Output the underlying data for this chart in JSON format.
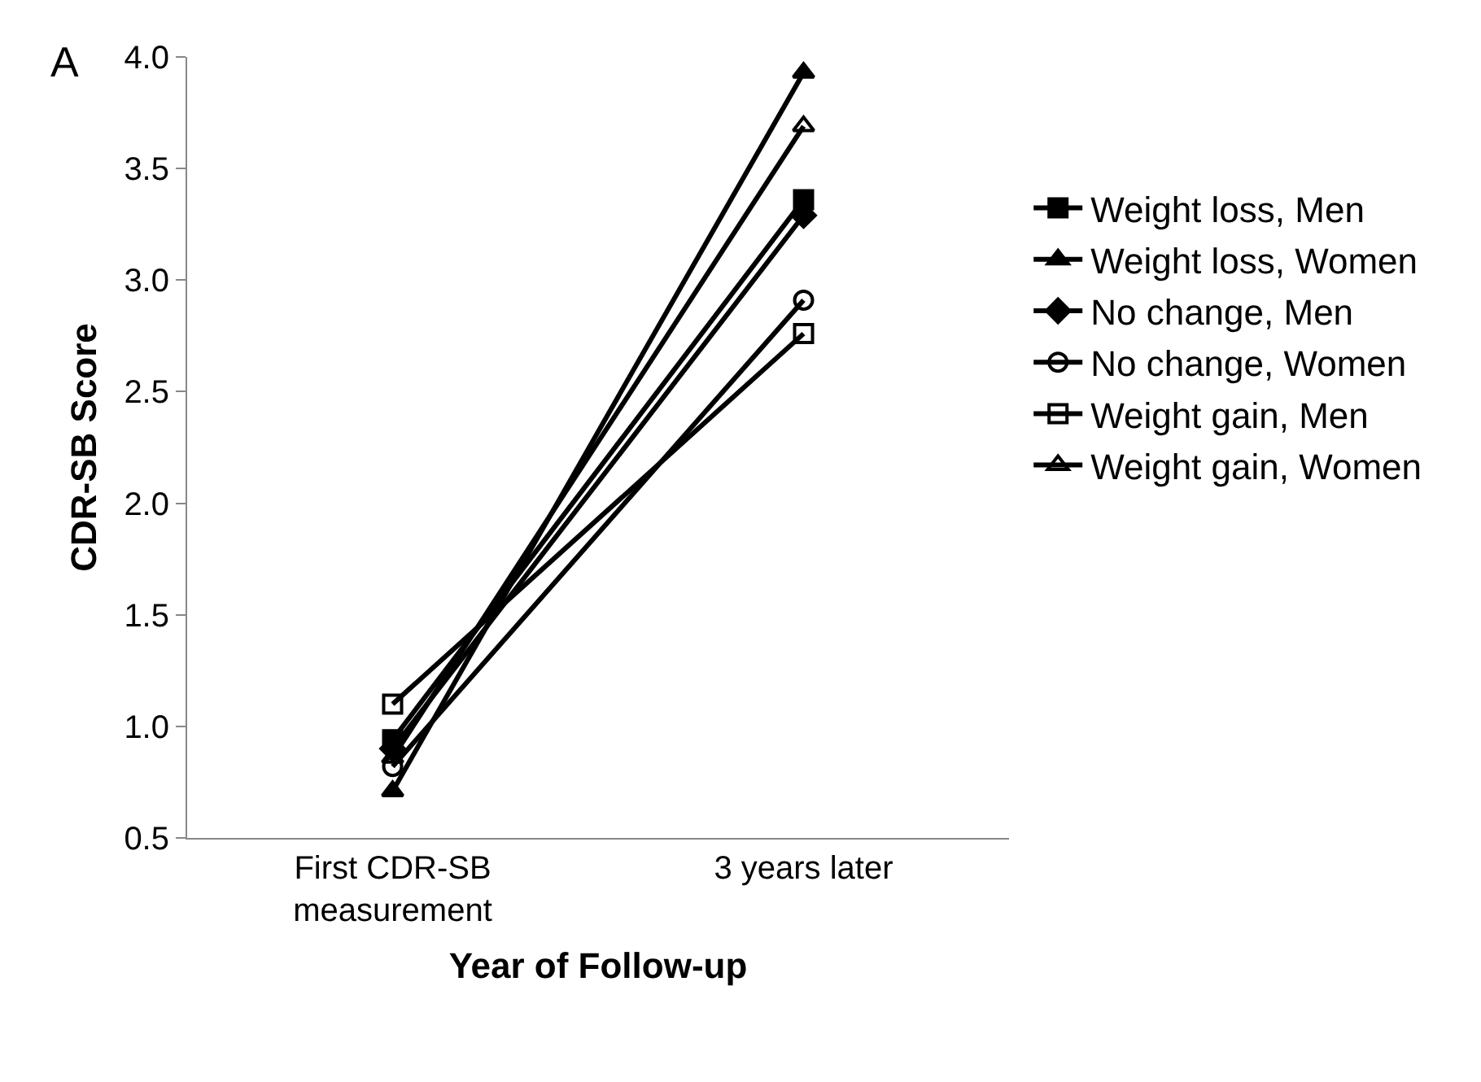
{
  "chart_data": {
    "type": "line",
    "xlabel": "Year of Follow-up",
    "ylabel": "CDR-SB Score",
    "annotations": [
      "A"
    ],
    "categories": [
      "First CDR-SB measurement",
      "3 years later"
    ],
    "ylim": [
      0.5,
      4.0
    ],
    "yticks": [
      {
        "value": 0.5,
        "label": "0.5"
      },
      {
        "value": 1,
        "label": "1.0"
      },
      {
        "value": 1.5,
        "label": "1.5"
      },
      {
        "value": 2,
        "label": "2.0"
      },
      {
        "value": 2.5,
        "label": "2.5"
      },
      {
        "value": 3,
        "label": "3.0"
      },
      {
        "value": 3.5,
        "label": "3.5"
      },
      {
        "value": 4,
        "label": "4.0"
      }
    ],
    "grid": false,
    "legend": "right",
    "line_style": "solid",
    "series": [
      {
        "name": "Weight loss, Men",
        "color": "#000000",
        "marker": "square",
        "values": [
          0.94,
          3.36
        ]
      },
      {
        "name": "Weight loss, Women",
        "color": "#000000",
        "marker": "triangle",
        "values": [
          0.71,
          3.93
        ]
      },
      {
        "name": "No change, Men",
        "color": "#000000",
        "marker": "diamond",
        "values": [
          0.9,
          3.29
        ]
      },
      {
        "name": "No change, Women",
        "color": "#000000",
        "marker": "circle-open",
        "values": [
          0.82,
          2.91
        ]
      },
      {
        "name": "Weight gain, Men",
        "color": "#000000",
        "marker": "square-open",
        "values": [
          1.1,
          2.76
        ]
      },
      {
        "name": "Weight gain, Women",
        "color": "#000000",
        "marker": "triangle-open",
        "values": [
          0.86,
          3.69
        ]
      }
    ]
  }
}
